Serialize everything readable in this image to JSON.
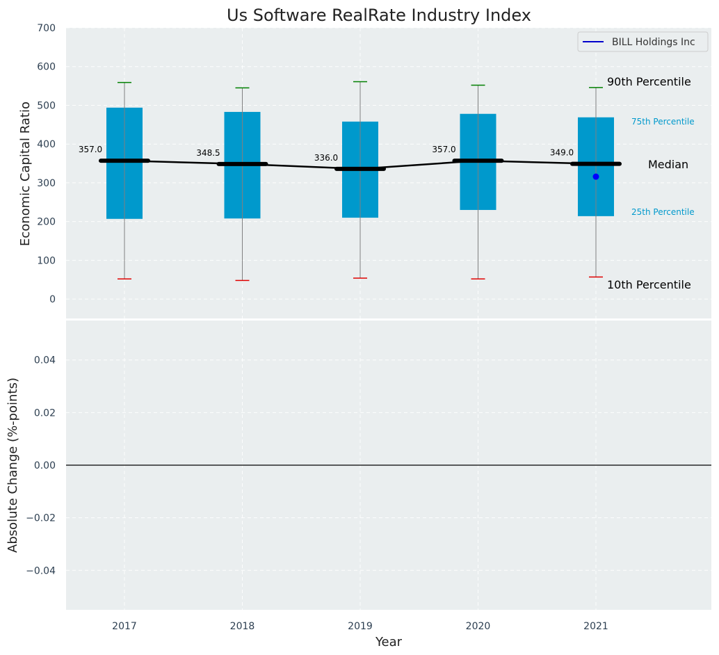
{
  "chart_data": {
    "type": "box",
    "title": "Us Software RealRate Industry Index",
    "xlabel": "Year",
    "top_panel": {
      "ylabel": "Economic Capital Ratio",
      "ylim": [
        -50,
        700
      ],
      "yticks": [
        0,
        100,
        200,
        300,
        400,
        500,
        600,
        700
      ],
      "categories": [
        "2017",
        "2018",
        "2019",
        "2020",
        "2021"
      ],
      "p10": [
        52,
        48,
        54,
        52,
        57
      ],
      "p25": [
        207,
        208,
        210,
        230,
        214
      ],
      "median": [
        357.0,
        348.5,
        336.0,
        357.0,
        349.0
      ],
      "median_labels": [
        "357.0",
        "348.5",
        "336.0",
        "357.0",
        "349.0"
      ],
      "p75": [
        494,
        483,
        458,
        478,
        469
      ],
      "p90": [
        559,
        545,
        561,
        552,
        546
      ],
      "company": {
        "name": "BILL Holdings Inc",
        "color": "#0000ff",
        "points": [
          {
            "x": "2021",
            "y": 316
          }
        ]
      },
      "annotations": {
        "p90": "90th Percentile",
        "p75": "75th Percentile",
        "median": "Median",
        "p25": "25th Percentile",
        "p10": "10th Percentile"
      },
      "legend_position": "top-right",
      "grid": true
    },
    "bottom_panel": {
      "ylabel": "Absolute Change (%-points)",
      "ylim": [
        -0.055,
        0.055
      ],
      "yticks": [
        -0.04,
        -0.02,
        0.0,
        0.02,
        0.04
      ],
      "ytick_labels": [
        "−0.04",
        "−0.02",
        "0.00",
        "0.02",
        "0.04"
      ],
      "zero_line": true,
      "grid": true
    },
    "colors": {
      "box": "#0099cc",
      "median": "#000000",
      "p90_cap": "#008000",
      "p10_cap": "#e00000",
      "whisker": "#808080",
      "background": "#eaeeef",
      "company": "#0000ff"
    }
  }
}
